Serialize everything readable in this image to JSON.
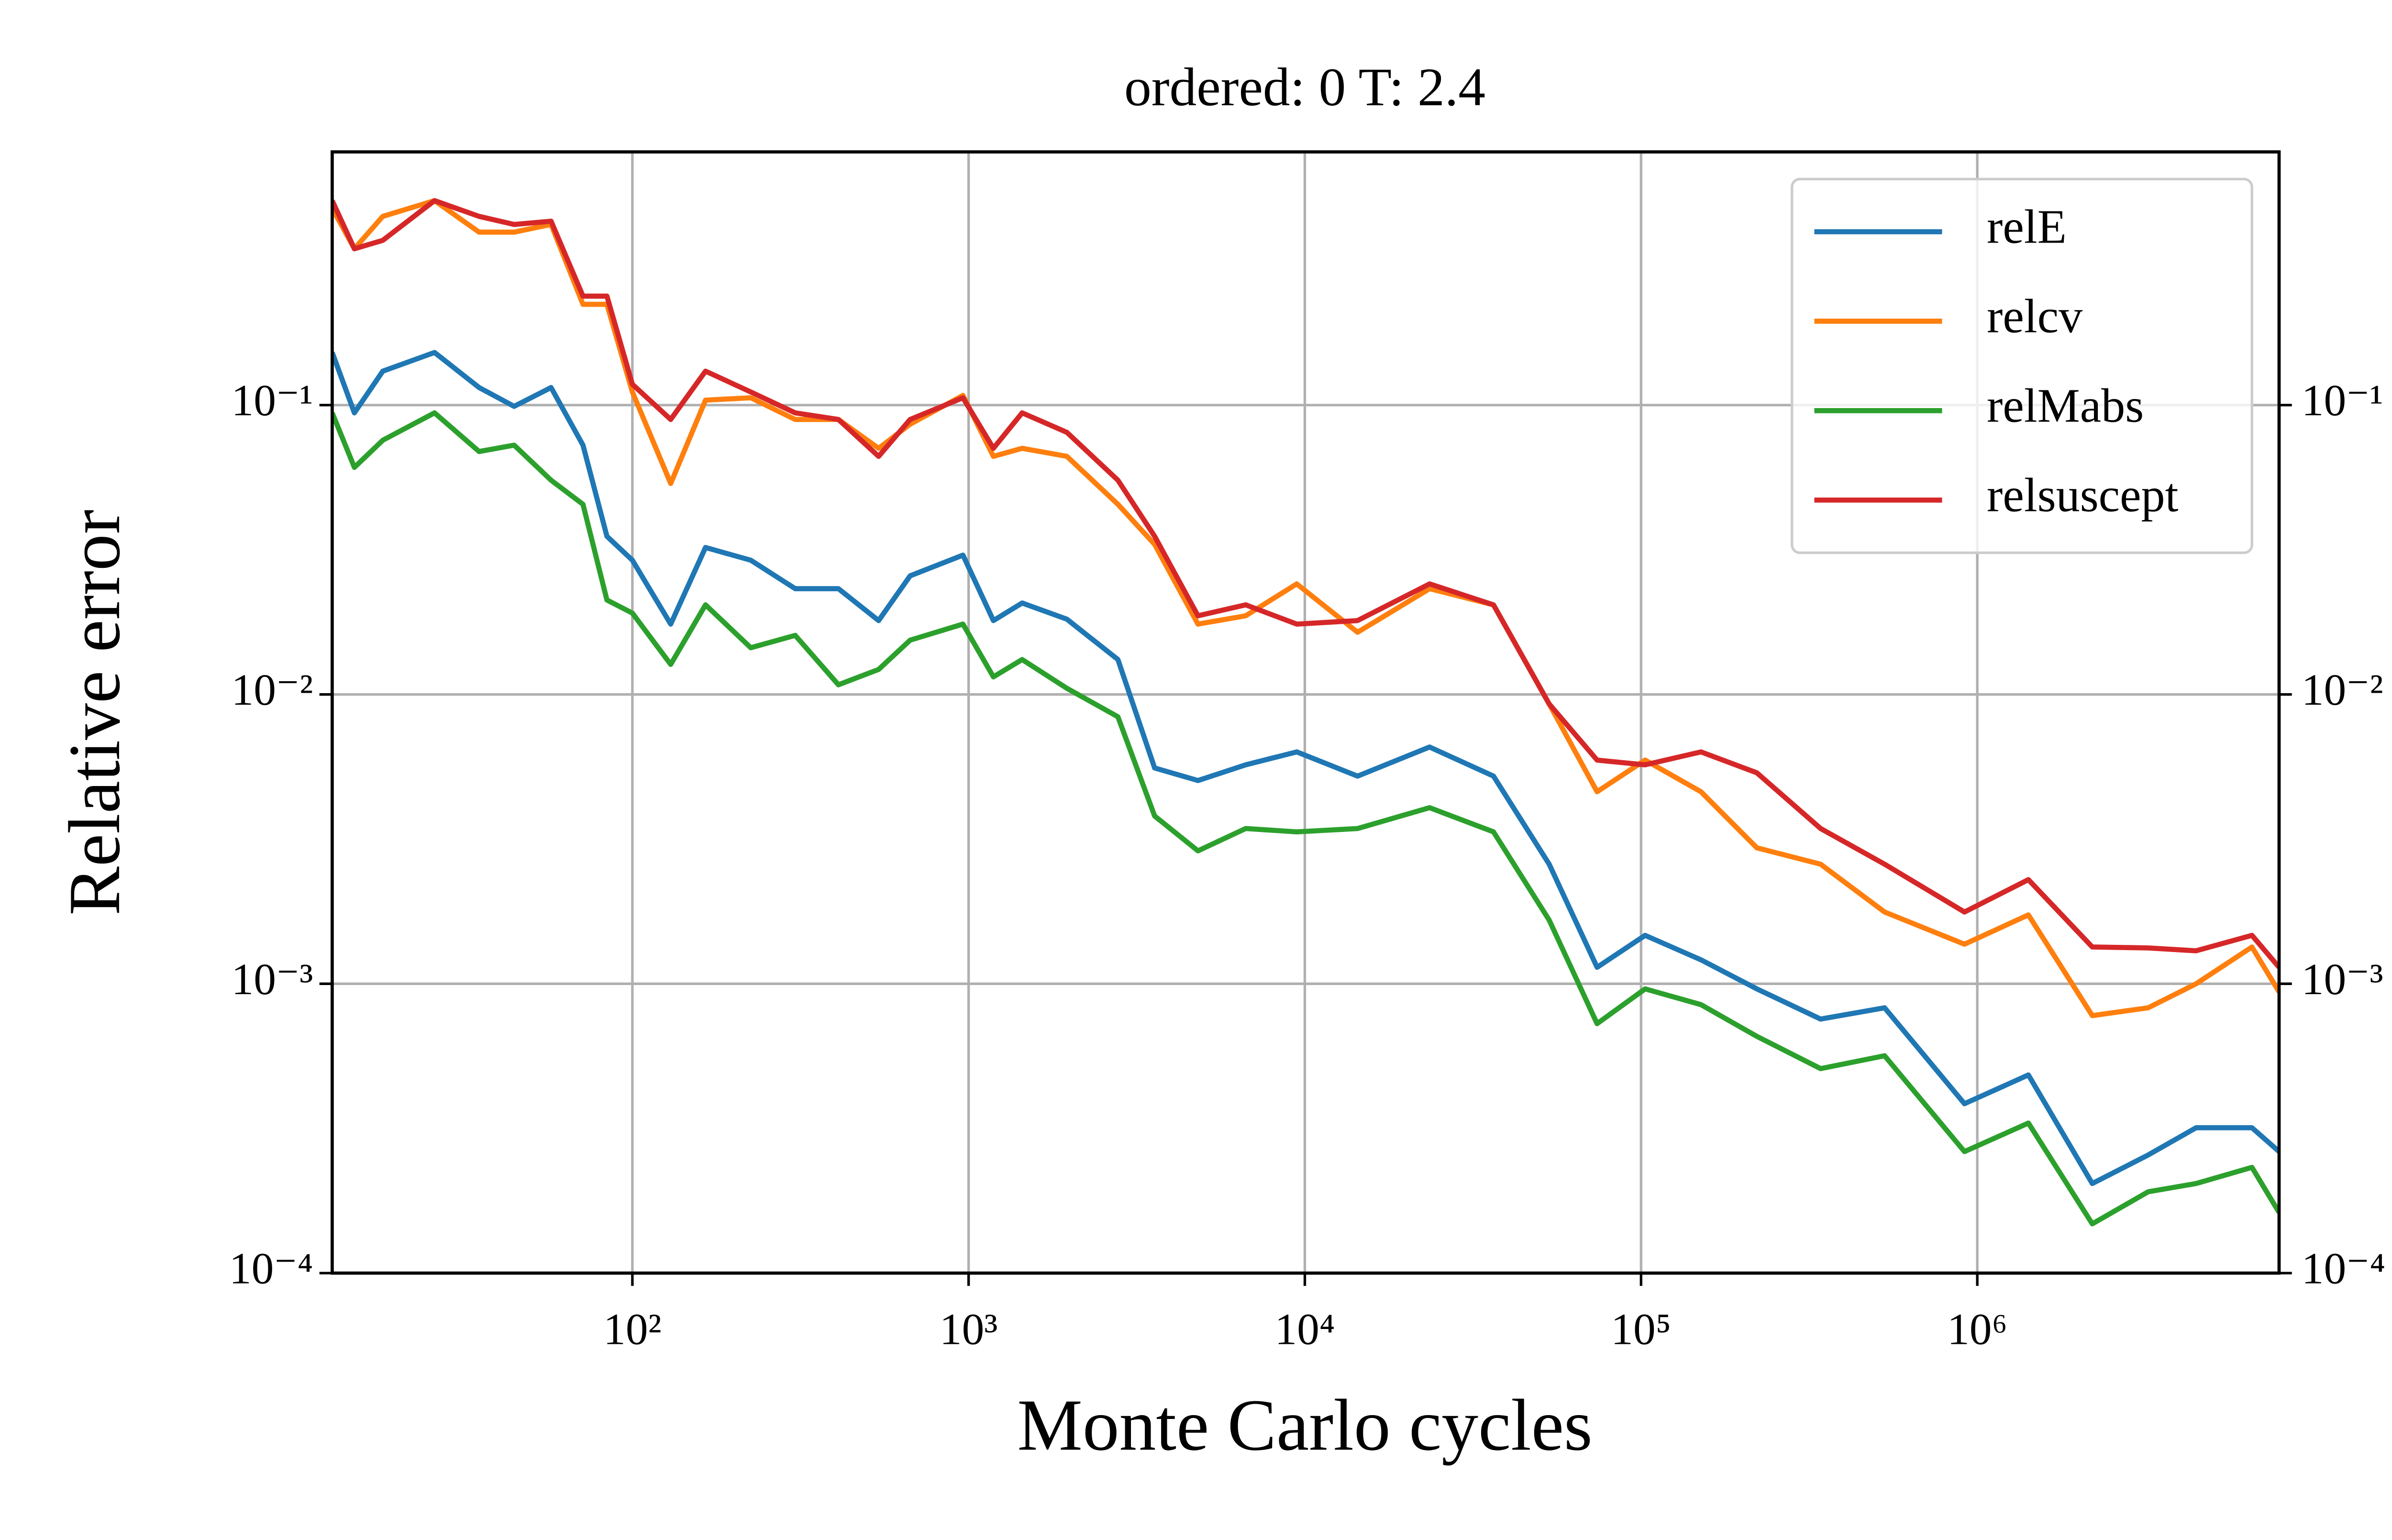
{
  "chart_data": {
    "type": "line",
    "title": "ordered: 0 T: 2.4",
    "x_label": "Monte Carlo cycles",
    "y_label": "Relative error",
    "xscale": "log",
    "yscale": "log",
    "grid": true,
    "mirror_y": true,
    "legend": "upper right",
    "xlim": [
      12.8,
      7900000
    ],
    "ylim": [
      0.0001,
      0.75
    ],
    "xticks": [
      {
        "value": 100,
        "label": "10²"
      },
      {
        "value": 1000,
        "label": "10³"
      },
      {
        "value": 10000,
        "label": "10⁴"
      },
      {
        "value": 100000,
        "label": "10⁵"
      },
      {
        "value": 1000000,
        "label": "10⁶"
      }
    ],
    "yticks": [
      {
        "value": 0.0001,
        "label": "10⁻⁴"
      },
      {
        "value": 0.001,
        "label": "10⁻³"
      },
      {
        "value": 0.01,
        "label": "10⁻²"
      },
      {
        "value": 0.1,
        "label": "10⁻¹"
      }
    ],
    "x": [
      12.8,
      14.9,
      18.1,
      25.8,
      35,
      44.5,
      57.3,
      71.3,
      84,
      100,
      130,
      165,
      225,
      305,
      410,
      540,
      670,
      962,
      1185,
      1443,
      1960,
      2780,
      3575,
      4810,
      6670,
      9460,
      14350,
      23500,
      36400,
      53300,
      74000,
      102800,
      150700,
      221000,
      342000,
      530000,
      916000,
      1419000,
      2198000,
      3223000,
      4475000,
      6560000,
      7900000
    ],
    "series": [
      {
        "name": "relE",
        "color": "#1f77b4",
        "values": [
          0.152,
          0.094,
          0.131,
          0.152,
          0.115,
          0.099,
          0.115,
          0.0727,
          0.0352,
          0.0291,
          0.0175,
          0.0322,
          0.0291,
          0.0232,
          0.0232,
          0.018,
          0.0257,
          0.0303,
          0.018,
          0.0207,
          0.0182,
          0.0132,
          0.00557,
          0.00504,
          0.00571,
          0.00633,
          0.00522,
          0.00658,
          0.00522,
          0.00259,
          0.00114,
          0.00147,
          0.00121,
          0.00096,
          0.000755,
          0.000826,
          0.000385,
          0.000484,
          0.000204,
          0.000256,
          0.000318,
          0.000318,
          0.000263
        ]
      },
      {
        "name": "relcv",
        "color": "#ff7f0e",
        "values": [
          0.479,
          0.347,
          0.449,
          0.509,
          0.396,
          0.396,
          0.421,
          0.223,
          0.223,
          0.111,
          0.0536,
          0.104,
          0.106,
          0.0892,
          0.0892,
          0.0709,
          0.0859,
          0.108,
          0.0665,
          0.0709,
          0.0665,
          0.0454,
          0.033,
          0.0175,
          0.0187,
          0.0241,
          0.0164,
          0.0232,
          0.0204,
          0.00927,
          0.00461,
          0.00593,
          0.00461,
          0.00295,
          0.00259,
          0.00177,
          0.00137,
          0.00173,
          0.000776,
          0.000826,
          0.001,
          0.00134,
          0.000937
        ]
      },
      {
        "name": "relMabs",
        "color": "#2ca02c",
        "values": [
          0.094,
          0.0609,
          0.0756,
          0.094,
          0.0691,
          0.0727,
          0.055,
          0.0454,
          0.0212,
          0.0191,
          0.0127,
          0.0204,
          0.0145,
          0.016,
          0.0108,
          0.0122,
          0.0154,
          0.0175,
          0.0115,
          0.0132,
          0.0105,
          0.00837,
          0.0038,
          0.00288,
          0.00344,
          0.00335,
          0.00344,
          0.00406,
          0.00335,
          0.00166,
          0.000728,
          0.00096,
          0.000847,
          0.000658,
          0.000509,
          0.000564,
          0.000263,
          0.00033,
          0.000148,
          0.000191,
          0.000204,
          0.000232,
          0.000162
        ]
      },
      {
        "name": "relsuscept",
        "color": "#d62728",
        "values": [
          0.509,
          0.347,
          0.371,
          0.509,
          0.449,
          0.421,
          0.432,
          0.238,
          0.238,
          0.118,
          0.0892,
          0.131,
          0.111,
          0.094,
          0.0892,
          0.0665,
          0.0892,
          0.106,
          0.0709,
          0.094,
          0.0805,
          0.055,
          0.0352,
          0.0187,
          0.0204,
          0.0175,
          0.018,
          0.0241,
          0.0204,
          0.00927,
          0.00593,
          0.00571,
          0.00633,
          0.00536,
          0.00344,
          0.00259,
          0.00177,
          0.00229,
          0.00134,
          0.00133,
          0.0013,
          0.00147,
          0.00114
        ]
      }
    ]
  }
}
